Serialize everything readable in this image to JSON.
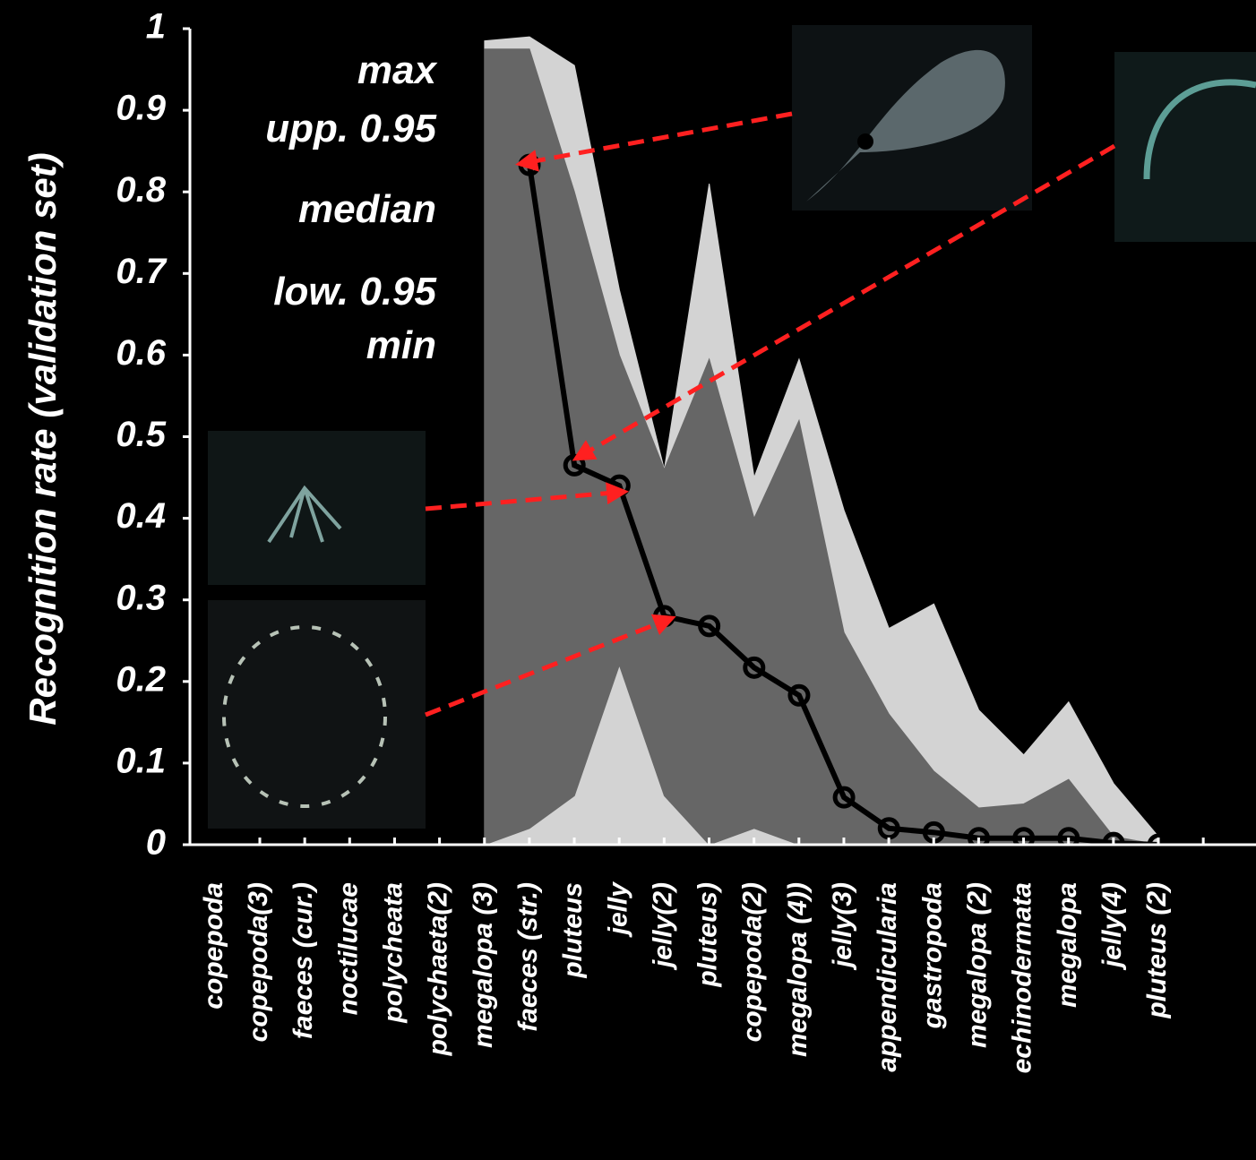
{
  "chart_data": {
    "type": "band",
    "ylabel": "Recognition rate (validation set)",
    "categories": [
      "copepoda",
      "copepoda(3)",
      "faeces (cur.)",
      "noctilucae",
      "polycheata",
      "polychaeta(2)",
      "megalopa (3)",
      "faeces (str.)",
      "pluteus",
      "jelly",
      "jelly(2)",
      "pluteus)",
      "copepoda(2)",
      "megalopa (4))",
      "jelly(3)",
      "appendicularia",
      "gastropoda",
      "megalopa (2)",
      "echinodermata",
      "megalopa",
      "jelly(4)",
      "pluteus (2)"
    ],
    "series": [
      {
        "name": "max",
        "color": "#d3d3d3",
        "values": [
          null,
          null,
          null,
          null,
          null,
          null,
          0.985,
          0.99,
          0.955,
          0.68,
          0.46,
          0.81,
          0.45,
          0.595,
          0.41,
          0.265,
          0.295,
          0.165,
          0.11,
          0.175,
          0.075,
          0.01
        ]
      },
      {
        "name": "upp. 0.95",
        "color": "#666666",
        "values": [
          null,
          null,
          null,
          null,
          null,
          null,
          0.975,
          0.975,
          0.8,
          0.6,
          0.46,
          0.595,
          0.4,
          0.52,
          0.26,
          0.16,
          0.09,
          0.045,
          0.05,
          0.08,
          0.01,
          0
        ]
      },
      {
        "name": "median",
        "color": "#000000",
        "values": [
          null,
          null,
          null,
          null,
          null,
          null,
          null,
          0.833,
          0.465,
          0.44,
          0.28,
          0.268,
          0.217,
          0.183,
          0.058,
          0.02,
          0.015,
          0.008,
          0.008,
          0.008,
          0.002,
          0
        ]
      },
      {
        "name": "low. 0.95",
        "color": "#666666",
        "values": [
          null,
          null,
          null,
          null,
          null,
          null,
          0,
          0.02,
          0.06,
          0.22,
          0.06,
          0,
          0.02,
          0,
          0,
          0,
          0,
          0,
          0,
          0,
          0,
          0
        ]
      },
      {
        "name": "min",
        "color": "#d3d3d3",
        "values": [
          null,
          null,
          null,
          null,
          null,
          null,
          0,
          0,
          0,
          0,
          0,
          0,
          0,
          0,
          0,
          0,
          0,
          0,
          0,
          0,
          0,
          0
        ]
      }
    ],
    "ylim": [
      0,
      1
    ],
    "yticks": [
      0,
      0.1,
      0.2,
      0.3,
      0.4,
      0.5,
      0.6,
      0.7,
      0.8,
      0.9,
      1
    ]
  }
}
